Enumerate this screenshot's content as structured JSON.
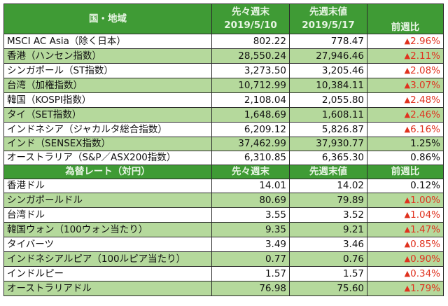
{
  "colors": {
    "header_bg": "#3f9b35",
    "alt_row_bg": "#b5d99c",
    "negative": "#e0321f"
  },
  "index_table": {
    "header": {
      "region": "国・地域",
      "prev_prev_line1": "先々週末",
      "prev_prev_line2": "2019/5/10",
      "prev_line1": "先週末値",
      "prev_line2": "2019/5/17",
      "change": "前週比"
    },
    "rows": [
      {
        "name": "MSCI AC Asia（除く日本）",
        "prev_prev": "802.22",
        "prev": "778.47",
        "change": "2.96%",
        "negative": true
      },
      {
        "name": "香港（ハンセン指数）",
        "prev_prev": "28,550.24",
        "prev": "27,946.46",
        "change": "2.11%",
        "negative": true
      },
      {
        "name": "シンガポール（ST指数）",
        "prev_prev": "3,273.50",
        "prev": "3,205.46",
        "change": "2.08%",
        "negative": true
      },
      {
        "name": "台湾（加権指数）",
        "prev_prev": "10,712.99",
        "prev": "10,384.11",
        "change": "3.07%",
        "negative": true
      },
      {
        "name": "韓国（KOSPI指数）",
        "prev_prev": "2,108.04",
        "prev": "2,055.80",
        "change": "2.48%",
        "negative": true
      },
      {
        "name": "タイ（SET指数）",
        "prev_prev": "1,648.69",
        "prev": "1,608.11",
        "change": "2.46%",
        "negative": true
      },
      {
        "name": "インドネシア（ジャカルタ総合指数）",
        "prev_prev": "6,209.12",
        "prev": "5,826.87",
        "change": "6.16%",
        "negative": true
      },
      {
        "name": "インド（SENSEX指数）",
        "prev_prev": "37,462.99",
        "prev": "37,930.77",
        "change": "1.25%",
        "negative": false
      },
      {
        "name": "オーストラリア（S&P／ASX200指数）",
        "prev_prev": "6,310.85",
        "prev": "6,365.30",
        "change": "0.86%",
        "negative": false
      }
    ]
  },
  "fx_table": {
    "header": {
      "region": "為替レート（対円）",
      "prev_prev": "先々週末",
      "prev": "先週末値",
      "change": "前週比"
    },
    "rows": [
      {
        "name": "香港ドル",
        "prev_prev": "14.01",
        "prev": "14.02",
        "change": "0.12%",
        "negative": false
      },
      {
        "name": "シンガポールドル",
        "prev_prev": "80.69",
        "prev": "79.89",
        "change": "1.00%",
        "negative": true
      },
      {
        "name": "台湾ドル",
        "prev_prev": "3.55",
        "prev": "3.52",
        "change": "1.04%",
        "negative": true
      },
      {
        "name": "韓国ウォン（100ウォン当たり）",
        "prev_prev": "9.35",
        "prev": "9.21",
        "change": "1.47%",
        "negative": true
      },
      {
        "name": "タイバーツ",
        "prev_prev": "3.49",
        "prev": "3.46",
        "change": "0.85%",
        "negative": true
      },
      {
        "name": "インドネシアルピア（100ルピア当たり）",
        "prev_prev": "0.77",
        "prev": "0.76",
        "change": "0.90%",
        "negative": true
      },
      {
        "name": "インドルピー",
        "prev_prev": "1.57",
        "prev": "1.57",
        "change": "0.34%",
        "negative": true
      },
      {
        "name": "オーストラリアドル",
        "prev_prev": "76.98",
        "prev": "75.60",
        "change": "1.79%",
        "negative": true
      }
    ]
  },
  "icons": {
    "negative_marker": "▲"
  }
}
